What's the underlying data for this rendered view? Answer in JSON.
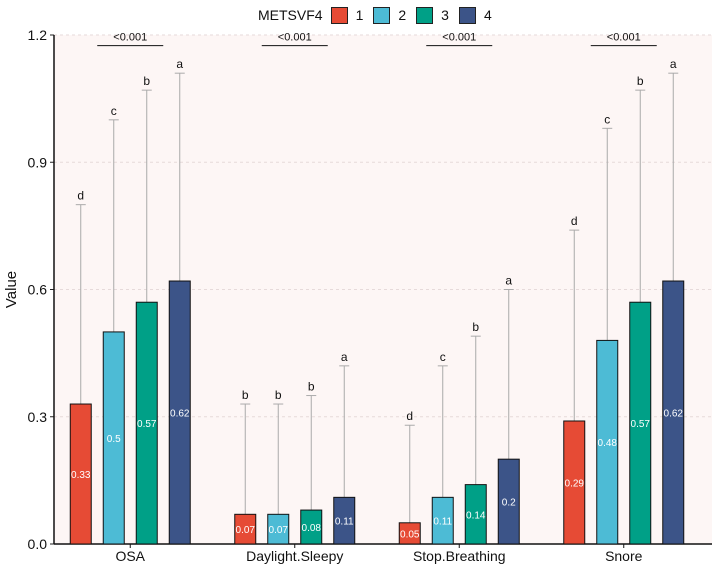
{
  "chart_data": {
    "type": "bar",
    "ylabel": "Value",
    "xlabel": "",
    "ylim": [
      0,
      1.2
    ],
    "yticks": [
      "0.0",
      "0.3",
      "0.6",
      "0.9",
      "1.2"
    ],
    "grid": true,
    "legend": {
      "title": "METSVF4",
      "position": "top"
    },
    "categories": [
      "OSA",
      "Daylight.Sleepy",
      "Stop.Breathing",
      "Snore"
    ],
    "series": [
      {
        "name": "1",
        "color": "#E64B35",
        "values": [
          0.33,
          0.07,
          0.05,
          0.29
        ],
        "upper": [
          0.8,
          0.33,
          0.28,
          0.74
        ],
        "letters": [
          "d",
          "b",
          "d",
          "d"
        ]
      },
      {
        "name": "2",
        "color": "#4DBBD5",
        "values": [
          0.5,
          0.07,
          0.11,
          0.48
        ],
        "upper": [
          1.0,
          0.33,
          0.42,
          0.98
        ],
        "letters": [
          "c",
          "b",
          "c",
          "c"
        ]
      },
      {
        "name": "3",
        "color": "#00A087",
        "values": [
          0.57,
          0.08,
          0.14,
          0.57
        ],
        "upper": [
          1.07,
          0.35,
          0.49,
          1.07
        ],
        "letters": [
          "b",
          "b",
          "b",
          "b"
        ]
      },
      {
        "name": "4",
        "color": "#3C5488",
        "values": [
          0.62,
          0.11,
          0.2,
          0.62
        ],
        "upper": [
          1.11,
          0.42,
          0.6,
          1.11
        ],
        "letters": [
          "a",
          "a",
          "a",
          "a"
        ]
      }
    ],
    "significance": [
      "<0.001",
      "<0.001",
      "<0.001",
      "<0.001"
    ]
  }
}
